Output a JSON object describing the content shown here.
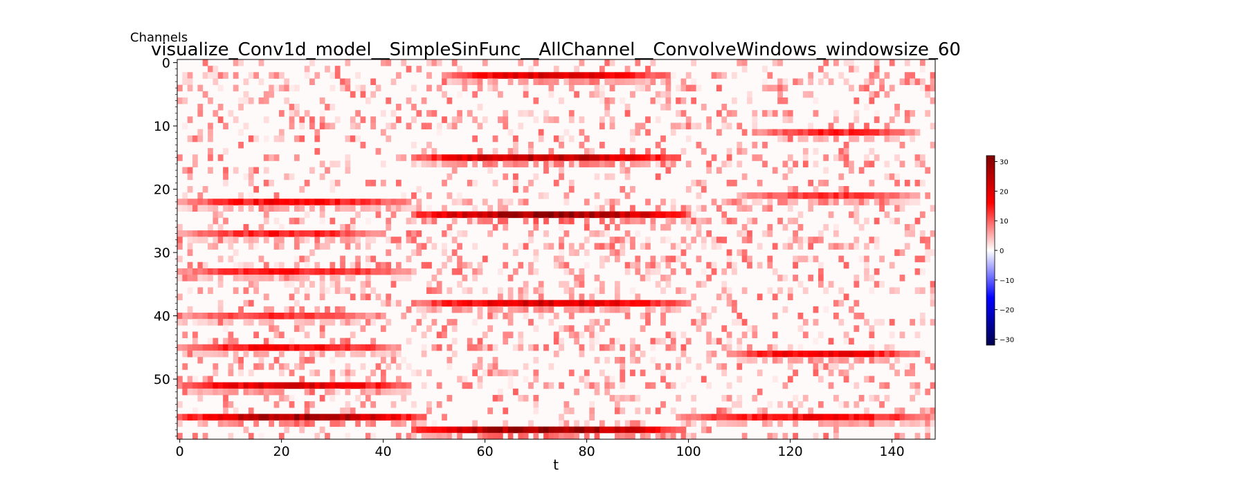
{
  "chart_data": {
    "type": "heatmap",
    "title": "visualize_Conv1d_model__SimpleSinFunc__AllChannel__ConvolveWindows_windowsize_60",
    "xlabel": "t",
    "ylabel": "Channels",
    "x_ticks": [
      0,
      20,
      40,
      60,
      80,
      100,
      120,
      140
    ],
    "y_ticks": [
      0,
      10,
      20,
      30,
      40,
      50
    ],
    "xlim": [
      0,
      149
    ],
    "ylim": [
      0,
      59
    ],
    "n_time": 149,
    "n_channels": 60,
    "colormap": "seismic",
    "colorbar": {
      "min": -32,
      "max": 32,
      "ticks": [
        30,
        20,
        10,
        0,
        -10,
        -20,
        -30
      ]
    },
    "colors": {
      "zero": "#fffafa",
      "positive": "#ff0000",
      "high": "#800000",
      "negative": "#0000ff",
      "low": "#00004c"
    },
    "dominant_bands": [
      {
        "channel": 2,
        "t_start": 52,
        "t_end": 96,
        "peak": 22
      },
      {
        "channel": 11,
        "t_start": 113,
        "t_end": 145,
        "peak": 15
      },
      {
        "channel": 15,
        "t_start": 46,
        "t_end": 98,
        "peak": 26
      },
      {
        "channel": 21,
        "t_start": 110,
        "t_end": 145,
        "peak": 14
      },
      {
        "channel": 22,
        "t_start": 0,
        "t_end": 45,
        "peak": 18
      },
      {
        "channel": 24,
        "t_start": 46,
        "t_end": 100,
        "peak": 30
      },
      {
        "channel": 27,
        "t_start": 0,
        "t_end": 40,
        "peak": 16
      },
      {
        "channel": 33,
        "t_start": 0,
        "t_end": 45,
        "peak": 16
      },
      {
        "channel": 38,
        "t_start": 46,
        "t_end": 100,
        "peak": 22
      },
      {
        "channel": 40,
        "t_start": 0,
        "t_end": 38,
        "peak": 14
      },
      {
        "channel": 45,
        "t_start": 0,
        "t_end": 43,
        "peak": 18
      },
      {
        "channel": 46,
        "t_start": 108,
        "t_end": 145,
        "peak": 20
      },
      {
        "channel": 51,
        "t_start": 0,
        "t_end": 45,
        "peak": 22
      },
      {
        "channel": 56,
        "t_start": 0,
        "t_end": 48,
        "peak": 28
      },
      {
        "channel": 56,
        "t_start": 98,
        "t_end": 149,
        "peak": 18
      },
      {
        "channel": 58,
        "t_start": 46,
        "t_end": 98,
        "peak": 30
      }
    ]
  }
}
